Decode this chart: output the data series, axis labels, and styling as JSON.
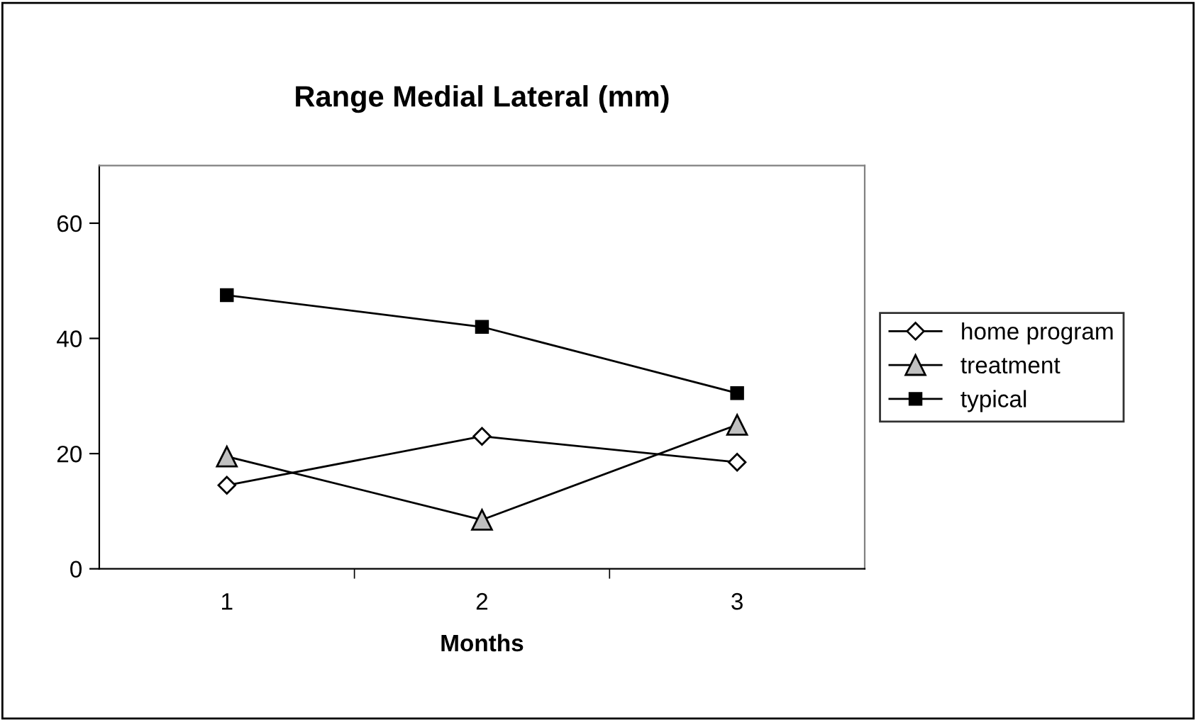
{
  "chart_data": {
    "type": "line",
    "title": "Range Medial Lateral (mm)",
    "xlabel": "Months",
    "categories": [
      "1",
      "2",
      "3"
    ],
    "series": [
      {
        "name": "home program",
        "color": "#ffffff",
        "marker": "diamond",
        "values": [
          14.5,
          23,
          18.5
        ]
      },
      {
        "name": "treatment",
        "color": "#c0c0c0",
        "marker": "triangle",
        "values": [
          19.5,
          8.5,
          25
        ]
      },
      {
        "name": "typical",
        "color": "#000000",
        "marker": "square",
        "values": [
          47.5,
          42,
          30.5
        ]
      }
    ],
    "ylim": [
      0,
      70
    ],
    "yticks": [
      0,
      20,
      40,
      60
    ],
    "grid": false,
    "legend": "right",
    "line_style": "solid"
  }
}
